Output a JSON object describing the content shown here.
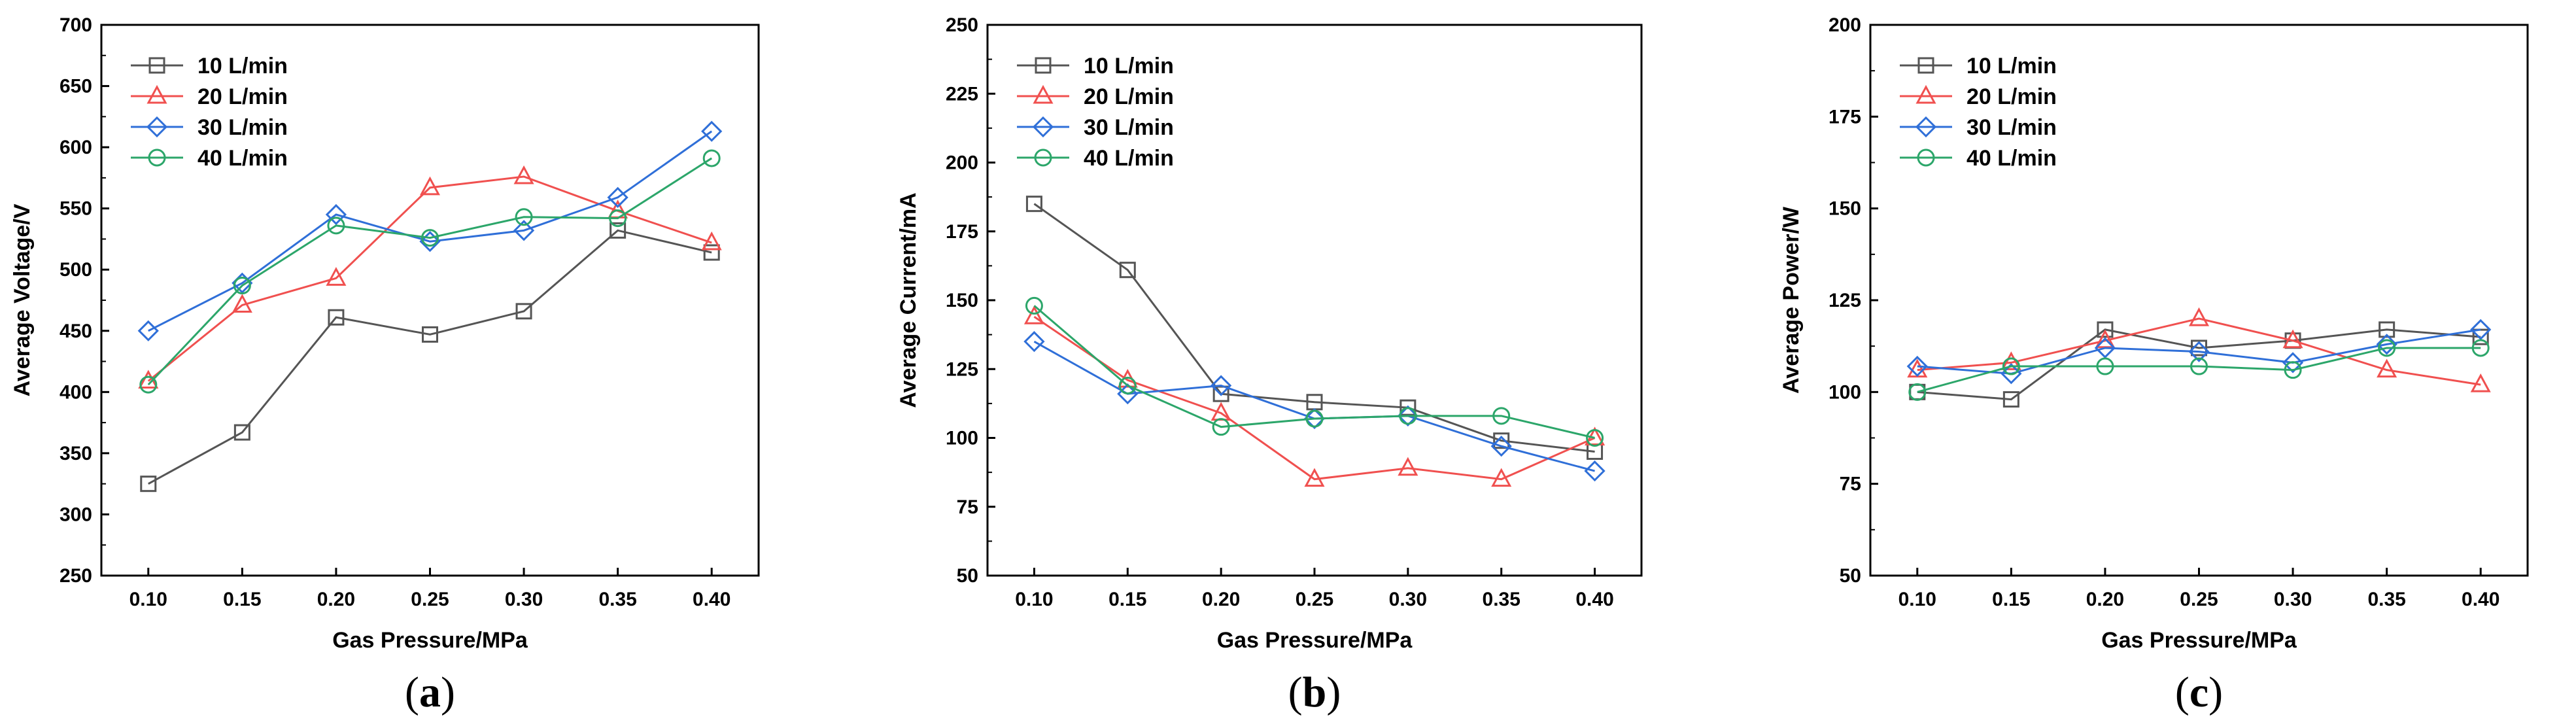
{
  "chart_data": [
    {
      "type": "line",
      "panel_label": "a",
      "xlabel": "Gas Pressure/MPa",
      "ylabel": "Average Voltage/V",
      "x": [
        0.1,
        0.15,
        0.2,
        0.25,
        0.3,
        0.35,
        0.4
      ],
      "x_tick_labels": [
        "0.10",
        "0.15",
        "0.20",
        "0.25",
        "0.30",
        "0.35",
        "0.40"
      ],
      "xlim": [
        0.075,
        0.425
      ],
      "ylim": [
        250,
        700
      ],
      "y_ticks": [
        250,
        300,
        350,
        400,
        450,
        500,
        550,
        600,
        650,
        700
      ],
      "legend_position": "top-left",
      "series": [
        {
          "name": "10 L/min",
          "color": "#555555",
          "marker": "square",
          "values": [
            325,
            367,
            461,
            447,
            466,
            532,
            514
          ]
        },
        {
          "name": "20 L/min",
          "color": "#f0504f",
          "marker": "triangle",
          "values": [
            409,
            471,
            493,
            567,
            576,
            548,
            522
          ]
        },
        {
          "name": "30 L/min",
          "color": "#2f6fd8",
          "marker": "diamond",
          "values": [
            450,
            489,
            545,
            523,
            532,
            559,
            613
          ]
        },
        {
          "name": "40 L/min",
          "color": "#2ca66a",
          "marker": "circle",
          "values": [
            406,
            487,
            536,
            526,
            543,
            542,
            591
          ]
        }
      ]
    },
    {
      "type": "line",
      "panel_label": "b",
      "xlabel": "Gas Pressure/MPa",
      "ylabel": "Average Current/mA",
      "x": [
        0.1,
        0.15,
        0.2,
        0.25,
        0.3,
        0.35,
        0.4
      ],
      "x_tick_labels": [
        "0.10",
        "0.15",
        "0.20",
        "0.25",
        "0.30",
        "0.35",
        "0.40"
      ],
      "xlim": [
        0.075,
        0.425
      ],
      "ylim": [
        50,
        250
      ],
      "y_ticks": [
        50,
        75,
        100,
        125,
        150,
        175,
        200,
        225,
        250
      ],
      "legend_position": "top-left",
      "series": [
        {
          "name": "10 L/min",
          "color": "#555555",
          "marker": "square",
          "values": [
            185,
            161,
            116,
            113,
            111,
            99,
            95
          ]
        },
        {
          "name": "20 L/min",
          "color": "#f0504f",
          "marker": "triangle",
          "values": [
            144,
            121,
            109,
            85,
            89,
            85,
            100
          ]
        },
        {
          "name": "30 L/min",
          "color": "#2f6fd8",
          "marker": "diamond",
          "values": [
            135,
            116,
            119,
            107,
            108,
            97,
            88
          ]
        },
        {
          "name": "40 L/min",
          "color": "#2ca66a",
          "marker": "circle",
          "values": [
            148,
            119,
            104,
            107,
            108,
            108,
            100
          ]
        }
      ]
    },
    {
      "type": "line",
      "panel_label": "c",
      "xlabel": "Gas Pressure/MPa",
      "ylabel": "Average Power/W",
      "x": [
        0.1,
        0.15,
        0.2,
        0.25,
        0.3,
        0.35,
        0.4
      ],
      "x_tick_labels": [
        "0.10",
        "0.15",
        "0.20",
        "0.25",
        "0.30",
        "0.35",
        "0.40"
      ],
      "xlim": [
        0.075,
        0.425
      ],
      "ylim": [
        50,
        200
      ],
      "y_ticks": [
        50,
        75,
        100,
        125,
        150,
        175,
        200
      ],
      "legend_position": "top-left",
      "series": [
        {
          "name": "10 L/min",
          "color": "#555555",
          "marker": "square",
          "values": [
            100,
            98,
            117,
            112,
            114,
            117,
            115
          ]
        },
        {
          "name": "20 L/min",
          "color": "#f0504f",
          "marker": "triangle",
          "values": [
            106,
            108,
            114,
            120,
            114,
            106,
            102
          ]
        },
        {
          "name": "30 L/min",
          "color": "#2f6fd8",
          "marker": "diamond",
          "values": [
            107,
            105,
            112,
            111,
            108,
            113,
            117
          ]
        },
        {
          "name": "40 L/min",
          "color": "#2ca66a",
          "marker": "circle",
          "values": [
            100,
            107,
            107,
            107,
            106,
            112,
            112
          ]
        }
      ]
    }
  ]
}
